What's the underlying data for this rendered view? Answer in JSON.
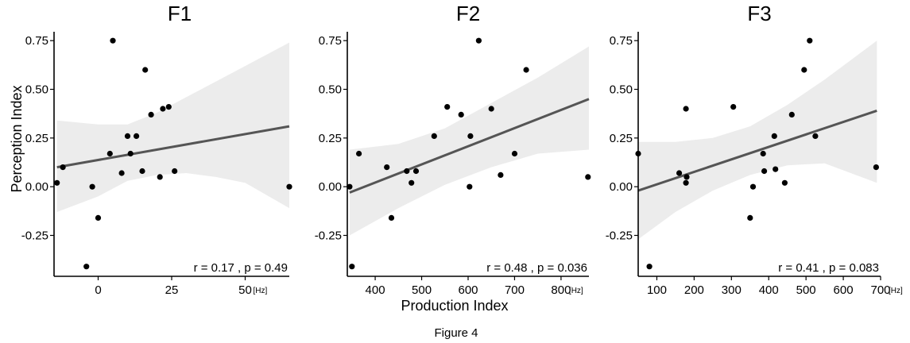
{
  "figure": {
    "caption": "Figure 4",
    "xlabel": "Production Index",
    "ylabel": "Perception Index"
  },
  "colors": {
    "points": "#000000",
    "fit_line": "#555555",
    "ci_band": "#ececec",
    "axis": "#000000"
  },
  "chart_data": [
    {
      "type": "scatter",
      "title": "F1",
      "xlabel": "",
      "ylabel": "Perception Index",
      "unit_label": "[Hz]",
      "xlim": [
        -15,
        65
      ],
      "ylim": [
        -0.46,
        0.82
      ],
      "xticks": [
        0,
        25,
        50
      ],
      "xtick_labels": [
        "0",
        "25",
        "50"
      ],
      "yticks": [
        -0.25,
        0.0,
        0.25,
        0.5,
        0.75
      ],
      "ytick_labels": [
        "-0.25",
        "0.00",
        "0.25",
        "0.50",
        "0.75"
      ],
      "annotation": "r = 0.17 , p = 0.49",
      "fit": {
        "start": [
          -14,
          0.1
        ],
        "end": [
          65,
          0.31
        ]
      },
      "ci_upper": [
        [
          -14,
          0.34
        ],
        [
          0,
          0.32
        ],
        [
          10,
          0.32
        ],
        [
          20,
          0.38
        ],
        [
          30,
          0.46
        ],
        [
          40,
          0.54
        ],
        [
          50,
          0.62
        ],
        [
          65,
          0.74
        ]
      ],
      "ci_lower": [
        [
          -14,
          -0.13
        ],
        [
          0,
          -0.05
        ],
        [
          10,
          0.03
        ],
        [
          20,
          0.06
        ],
        [
          30,
          0.07
        ],
        [
          40,
          0.05
        ],
        [
          50,
          0.02
        ],
        [
          65,
          -0.11
        ]
      ],
      "points": [
        {
          "x": -14,
          "y": 0.02
        },
        {
          "x": -12,
          "y": 0.1
        },
        {
          "x": -2,
          "y": 0.0
        },
        {
          "x": 0,
          "y": -0.16
        },
        {
          "x": -4,
          "y": -0.41
        },
        {
          "x": 5,
          "y": 0.75
        },
        {
          "x": 4,
          "y": 0.17
        },
        {
          "x": 8,
          "y": 0.07
        },
        {
          "x": 10,
          "y": 0.26
        },
        {
          "x": 11,
          "y": 0.17
        },
        {
          "x": 13,
          "y": 0.26
        },
        {
          "x": 15,
          "y": 0.08
        },
        {
          "x": 16,
          "y": 0.6
        },
        {
          "x": 18,
          "y": 0.37
        },
        {
          "x": 21,
          "y": 0.05
        },
        {
          "x": 22,
          "y": 0.4
        },
        {
          "x": 24,
          "y": 0.41
        },
        {
          "x": 26,
          "y": 0.08
        },
        {
          "x": 65,
          "y": 0.0
        }
      ]
    },
    {
      "type": "scatter",
      "title": "F2",
      "xlabel": "Production Index",
      "ylabel": "",
      "unit_label": "[Hz]",
      "xlim": [
        340,
        860
      ],
      "ylim": [
        -0.46,
        0.82
      ],
      "xticks": [
        400,
        500,
        600,
        700,
        800
      ],
      "xtick_labels": [
        "400",
        "500",
        "600",
        "700",
        "800"
      ],
      "yticks": [
        -0.25,
        0.0,
        0.25,
        0.5,
        0.75
      ],
      "ytick_labels": [
        "-0.25",
        "0.00",
        "0.25",
        "0.50",
        "0.75"
      ],
      "annotation": "r = 0.48 , p = 0.036",
      "fit": {
        "start": [
          345,
          -0.03
        ],
        "end": [
          860,
          0.45
        ]
      },
      "ci_upper": [
        [
          345,
          0.19
        ],
        [
          450,
          0.22
        ],
        [
          550,
          0.3
        ],
        [
          650,
          0.43
        ],
        [
          750,
          0.56
        ],
        [
          860,
          0.72
        ]
      ],
      "ci_lower": [
        [
          345,
          -0.25
        ],
        [
          450,
          -0.11
        ],
        [
          550,
          0.01
        ],
        [
          650,
          0.1
        ],
        [
          750,
          0.17
        ],
        [
          860,
          0.19
        ]
      ],
      "points": [
        {
          "x": 345,
          "y": 0.0
        },
        {
          "x": 350,
          "y": -0.41
        },
        {
          "x": 365,
          "y": 0.17
        },
        {
          "x": 425,
          "y": 0.1
        },
        {
          "x": 435,
          "y": -0.16
        },
        {
          "x": 468,
          "y": 0.08
        },
        {
          "x": 478,
          "y": 0.02
        },
        {
          "x": 488,
          "y": 0.08
        },
        {
          "x": 527,
          "y": 0.26
        },
        {
          "x": 555,
          "y": 0.41
        },
        {
          "x": 585,
          "y": 0.37
        },
        {
          "x": 603,
          "y": 0.0
        },
        {
          "x": 605,
          "y": 0.26
        },
        {
          "x": 623,
          "y": 0.75
        },
        {
          "x": 650,
          "y": 0.4
        },
        {
          "x": 670,
          "y": 0.06
        },
        {
          "x": 700,
          "y": 0.17
        },
        {
          "x": 725,
          "y": 0.6
        },
        {
          "x": 858,
          "y": 0.05
        }
      ]
    },
    {
      "type": "scatter",
      "title": "F3",
      "xlabel": "",
      "ylabel": "",
      "unit_label": "[Hz]",
      "xlim": [
        50,
        700
      ],
      "ylim": [
        -0.46,
        0.82
      ],
      "xticks": [
        100,
        200,
        300,
        400,
        500,
        600,
        700
      ],
      "xtick_labels": [
        "100",
        "200",
        "300",
        "400",
        "500",
        "600",
        "700"
      ],
      "yticks": [
        -0.25,
        0.0,
        0.25,
        0.5,
        0.75
      ],
      "ytick_labels": [
        "-0.25",
        "0.00",
        "0.25",
        "0.50",
        "0.75"
      ],
      "annotation": "r = 0.41 , p = 0.083",
      "fit": {
        "start": [
          50,
          -0.02
        ],
        "end": [
          690,
          0.39
        ]
      },
      "ci_upper": [
        [
          50,
          0.23
        ],
        [
          150,
          0.23
        ],
        [
          250,
          0.25
        ],
        [
          350,
          0.31
        ],
        [
          450,
          0.42
        ],
        [
          550,
          0.55
        ],
        [
          690,
          0.75
        ]
      ],
      "ci_lower": [
        [
          50,
          -0.27
        ],
        [
          150,
          -0.13
        ],
        [
          250,
          -0.02
        ],
        [
          350,
          0.06
        ],
        [
          450,
          0.11
        ],
        [
          550,
          0.12
        ],
        [
          690,
          0.02
        ]
      ],
      "points": [
        {
          "x": 50,
          "y": 0.17
        },
        {
          "x": 80,
          "y": -0.41
        },
        {
          "x": 160,
          "y": 0.07
        },
        {
          "x": 178,
          "y": 0.02
        },
        {
          "x": 180,
          "y": 0.05
        },
        {
          "x": 178,
          "y": 0.4
        },
        {
          "x": 305,
          "y": 0.41
        },
        {
          "x": 350,
          "y": -0.16
        },
        {
          "x": 358,
          "y": 0.0
        },
        {
          "x": 385,
          "y": 0.17
        },
        {
          "x": 388,
          "y": 0.08
        },
        {
          "x": 415,
          "y": 0.26
        },
        {
          "x": 418,
          "y": 0.09
        },
        {
          "x": 443,
          "y": 0.02
        },
        {
          "x": 462,
          "y": 0.37
        },
        {
          "x": 495,
          "y": 0.6
        },
        {
          "x": 510,
          "y": 0.75
        },
        {
          "x": 525,
          "y": 0.26
        },
        {
          "x": 688,
          "y": 0.1
        }
      ]
    }
  ]
}
